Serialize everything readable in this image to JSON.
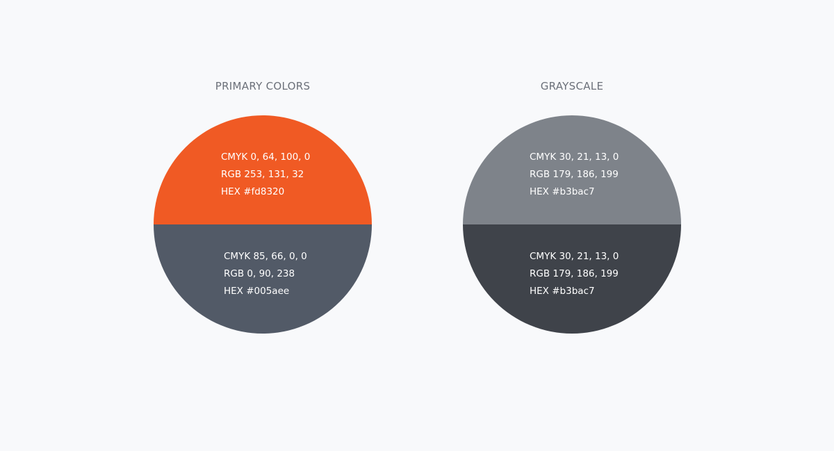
{
  "palettes": [
    {
      "title": "PRIMARY COLORS",
      "top": {
        "swatch_color": "#f05a24",
        "cmyk": "CMYK 0, 64, 100, 0",
        "rgb": "RGB 253, 131, 32",
        "hex": "HEX #fd8320"
      },
      "bottom": {
        "swatch_color": "#525a67",
        "cmyk": "CMYK 85, 66, 0, 0",
        "rgb": "RGB 0, 90, 238",
        "hex": "HEX #005aee"
      }
    },
    {
      "title": "GRAYSCALE",
      "top": {
        "swatch_color": "#7e838a",
        "cmyk": "CMYK 30, 21, 13, 0",
        "rgb": "RGB 179, 186, 199",
        "hex": "HEX #b3bac7"
      },
      "bottom": {
        "swatch_color": "#3f434a",
        "cmyk": "CMYK 30, 21, 13, 0",
        "rgb": "RGB 179, 186, 199",
        "hex": "HEX #b3bac7"
      }
    }
  ]
}
